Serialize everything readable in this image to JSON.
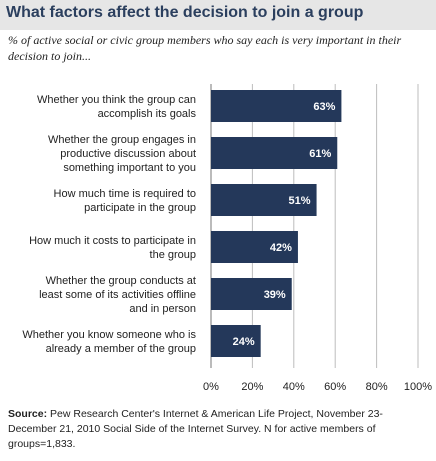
{
  "title": "What factors affect the decision to join a group",
  "subtitle": "% of active social or civic group members who say each is very important in their decision to join...",
  "source_label": "Source:",
  "source_text": "Pew Research Center's Internet & American Life Project, November 23-December 21, 2010 Social Side of the Internet Survey. N for active members of groups=1,833.",
  "colors": {
    "bar": "#24385a",
    "title": "#2b3f5e",
    "title_bg": "#e6e6e6"
  },
  "chart_data": {
    "type": "bar",
    "orientation": "horizontal",
    "categories": [
      [
        "Whether you think the group can",
        "accomplish its goals"
      ],
      [
        "Whether the group engages in",
        "productive discussion about",
        "something important to you"
      ],
      [
        "How much time is required to",
        "participate in the group"
      ],
      [
        "How much it costs to participate in",
        "the group"
      ],
      [
        "Whether the group conducts at",
        "least some of its activities offline",
        "and in person"
      ],
      [
        "Whether you know someone who is",
        "already a member of the group"
      ]
    ],
    "values": [
      63,
      61,
      51,
      42,
      39,
      24
    ],
    "value_labels": [
      "63%",
      "61%",
      "51%",
      "42%",
      "39%",
      "24%"
    ],
    "xlim": [
      0,
      100
    ],
    "ticks": [
      0,
      20,
      40,
      60,
      80,
      100
    ],
    "tick_labels": [
      "0%",
      "20%",
      "40%",
      "60%",
      "80%",
      "100%"
    ],
    "grid": true
  }
}
